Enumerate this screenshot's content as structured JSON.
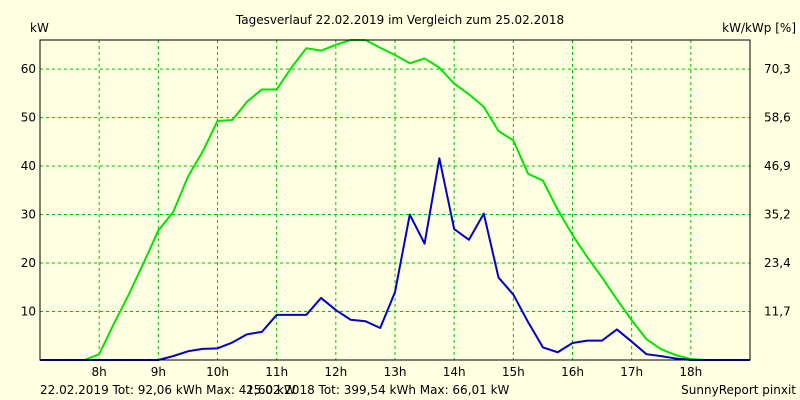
{
  "chart_data": {
    "type": "line",
    "title": "Tagesverlauf 22.02.2019 im Vergleich zum 25.02.2018",
    "ylabel_left": "kW",
    "ylabel_right": "kW/kWp [%]",
    "xlim": [
      7.0,
      19.0
    ],
    "ylim": [
      0,
      66
    ],
    "grid": true,
    "x_ticks": [
      8,
      9,
      10,
      11,
      12,
      13,
      14,
      15,
      16,
      17,
      18
    ],
    "x_tick_labels": [
      "8h",
      "9h",
      "10h",
      "11h",
      "12h",
      "13h",
      "14h",
      "15h",
      "16h",
      "17h",
      "18h"
    ],
    "y_ticks_left": [
      10,
      20,
      30,
      40,
      50,
      60
    ],
    "y_tick_labels_left": [
      "10",
      "20",
      "30",
      "40",
      "50",
      "60"
    ],
    "y_ticks_right": [
      11.7,
      23.4,
      35.2,
      46.9,
      58.6,
      70.3
    ],
    "y_tick_labels_right": [
      "11,7",
      "23,4",
      "35,2",
      "46,9",
      "58,6",
      "70,3"
    ],
    "series": [
      {
        "name": "22.02.2019",
        "color": "#0000cc",
        "x": [
          7.0,
          7.25,
          7.5,
          7.75,
          8.0,
          8.25,
          8.5,
          8.75,
          9.0,
          9.25,
          9.5,
          9.75,
          10.0,
          10.25,
          10.5,
          10.75,
          11.0,
          11.25,
          11.5,
          11.75,
          12.0,
          12.25,
          12.5,
          12.75,
          13.0,
          13.25,
          13.5,
          13.75,
          14.0,
          14.25,
          14.5,
          14.75,
          15.0,
          15.25,
          15.5,
          15.75,
          16.0,
          16.25,
          16.5,
          16.75,
          17.0,
          17.25,
          17.5,
          17.75,
          18.0,
          18.25,
          18.5,
          18.75,
          19.0
        ],
        "values": [
          0,
          0,
          0,
          0,
          0,
          0,
          0,
          0,
          0,
          0.8,
          1.8,
          2.3,
          2.4,
          3.6,
          5.3,
          5.8,
          9.3,
          9.3,
          9.3,
          12.8,
          10.3,
          8.3,
          8.0,
          6.6,
          14.0,
          30.0,
          24.0,
          41.6,
          27.0,
          24.8,
          30.2,
          17.0,
          13.5,
          7.8,
          2.6,
          1.6,
          3.5,
          4.0,
          4.0,
          6.3,
          3.8,
          1.2,
          0.8,
          0.3,
          0,
          0,
          0,
          0,
          0
        ]
      },
      {
        "name": "25.02.2018",
        "color": "#00e600",
        "x": [
          7.0,
          7.25,
          7.5,
          7.75,
          8.0,
          8.25,
          8.5,
          8.75,
          9.0,
          9.25,
          9.5,
          9.75,
          10.0,
          10.25,
          10.5,
          10.75,
          11.0,
          11.25,
          11.5,
          11.75,
          12.0,
          12.25,
          12.5,
          12.75,
          13.0,
          13.25,
          13.5,
          13.75,
          14.0,
          14.25,
          14.5,
          14.75,
          15.0,
          15.25,
          15.5,
          15.75,
          16.0,
          16.25,
          16.5,
          16.75,
          17.0,
          17.25,
          17.5,
          17.75,
          18.0,
          18.25,
          18.5,
          18.75,
          19.0
        ],
        "values": [
          0,
          0,
          0,
          0,
          1.2,
          7.5,
          13.5,
          20.0,
          26.7,
          30.5,
          37.8,
          43.0,
          49.3,
          49.5,
          53.3,
          55.8,
          55.8,
          60.3,
          64.3,
          63.8,
          65.0,
          66.0,
          66.0,
          64.4,
          62.9,
          61.2,
          62.2,
          60.3,
          57.0,
          54.8,
          52.2,
          47.2,
          45.3,
          38.4,
          37.0,
          31.0,
          25.8,
          21.2,
          17.0,
          12.5,
          8.2,
          4.3,
          2.2,
          1.0,
          0.2,
          0,
          0,
          0,
          0
        ]
      }
    ]
  },
  "footer": {
    "series1_text": "22.02.2019 Tot: 92,06 kWh Max: 41,60 kW",
    "series2_text": "25.02.2018 Tot: 399,54 kWh Max: 66,01 kW",
    "brand": "SunnyReport pinxit"
  }
}
